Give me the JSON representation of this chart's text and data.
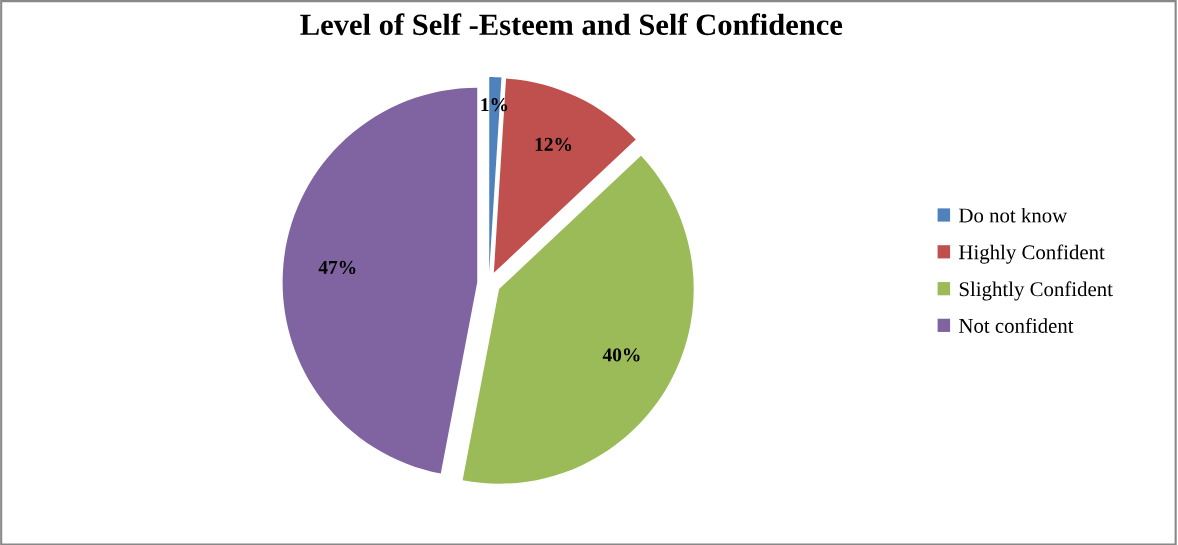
{
  "chart_data": {
    "type": "pie",
    "title": "Level of Self -Esteem and Self Confidence",
    "categories": [
      "Do not know",
      "Highly Confident",
      "Slightly Confident",
      "Not confident"
    ],
    "values": [
      1,
      12,
      40,
      47
    ],
    "colors": [
      "#4f81bd",
      "#c0504d",
      "#9bbb59",
      "#8064a2"
    ],
    "value_labels": [
      "1%",
      "12%",
      "40%",
      "47%"
    ],
    "legend": "right"
  }
}
